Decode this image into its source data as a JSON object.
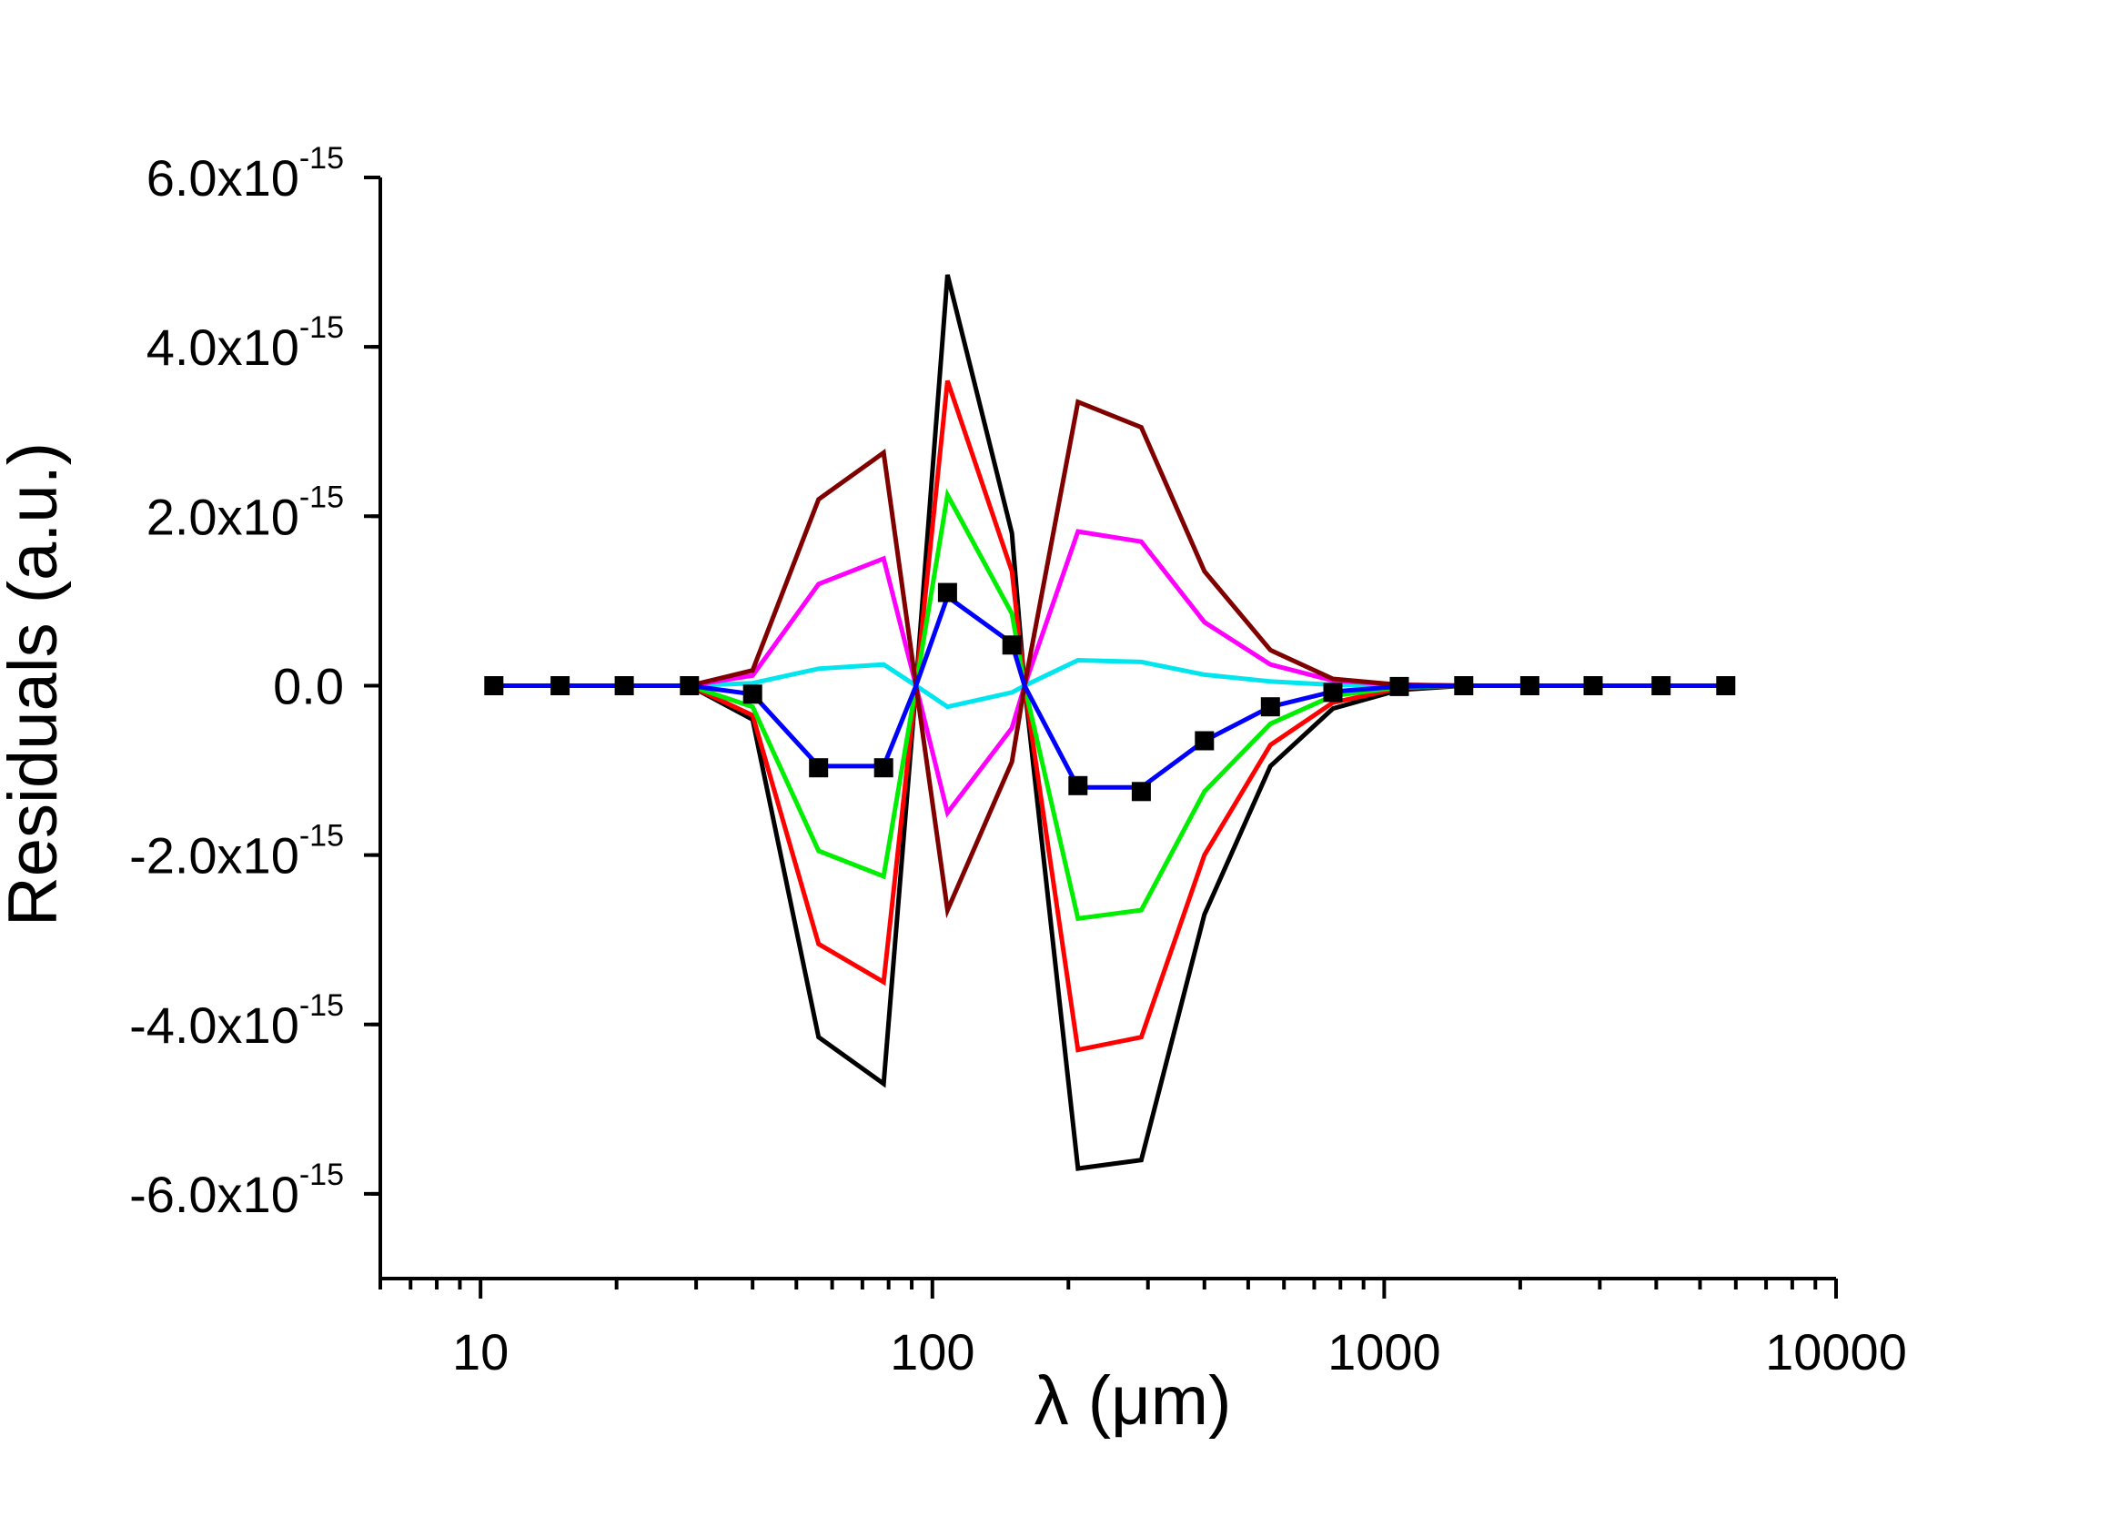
{
  "chart_data": {
    "type": "line",
    "title": "",
    "xlabel": "λ (μm)",
    "ylabel": "Residuals (a.u.)",
    "x_scale": "log",
    "xlim": [
      6,
      10000
    ],
    "ylim": [
      -7e-15,
      6e-15
    ],
    "x_ticks": [
      {
        "value": 10,
        "label": "10"
      },
      {
        "value": 100,
        "label": "100"
      },
      {
        "value": 1000,
        "label": "1000"
      },
      {
        "value": 10000,
        "label": "10000"
      }
    ],
    "y_ticks": [
      {
        "value": 6e-15,
        "mantissa": "6.0x10",
        "exponent": "-15"
      },
      {
        "value": 4e-15,
        "mantissa": "4.0x10",
        "exponent": "-15"
      },
      {
        "value": 2e-15,
        "mantissa": "2.0x10",
        "exponent": "-15"
      },
      {
        "value": 0,
        "mantissa": "0.0",
        "exponent": ""
      },
      {
        "value": -2e-15,
        "mantissa": "-2.0x10",
        "exponent": "-15"
      },
      {
        "value": -4e-15,
        "mantissa": "-4.0x10",
        "exponent": "-15"
      },
      {
        "value": -6e-15,
        "mantissa": "-6.0x10",
        "exponent": "-15"
      }
    ],
    "grid": false,
    "x": [
      10.7,
      15,
      20.8,
      29,
      40,
      56,
      78,
      92,
      108,
      150,
      160,
      210,
      290,
      400,
      560,
      770,
      1080,
      1500,
      2100,
      2900,
      4100,
      5700
    ],
    "series": [
      {
        "name": "black",
        "color": "#000000",
        "markers": false,
        "values": [
          0,
          0,
          0,
          0,
          -4e-16,
          -4.15e-15,
          -4.7e-15,
          0,
          4.85e-15,
          1.8e-15,
          0,
          -5.7e-15,
          -5.6e-15,
          -2.7e-15,
          -9.5e-16,
          -2.7e-16,
          -5e-17,
          0,
          0,
          0,
          0,
          0
        ]
      },
      {
        "name": "red",
        "color": "#ff0000",
        "markers": false,
        "values": [
          0,
          0,
          0,
          0,
          -3.5e-16,
          -3.05e-15,
          -3.5e-15,
          0,
          3.6e-15,
          1.35e-15,
          0,
          -4.3e-15,
          -4.15e-15,
          -2e-15,
          -7e-16,
          -2e-16,
          -3e-17,
          0,
          0,
          0,
          0,
          0
        ]
      },
      {
        "name": "green",
        "color": "#00ee00",
        "markers": false,
        "values": [
          0,
          0,
          0,
          0,
          -2.5e-16,
          -1.95e-15,
          -2.25e-15,
          0,
          2.25e-15,
          8.5e-16,
          0,
          -2.75e-15,
          -2.65e-15,
          -1.25e-15,
          -4.5e-16,
          -1.2e-16,
          -2e-17,
          0,
          0,
          0,
          0,
          0
        ]
      },
      {
        "name": "cyan",
        "color": "#00e5ee",
        "markers": false,
        "values": [
          0,
          0,
          0,
          0,
          3e-17,
          2e-16,
          2.5e-16,
          0,
          -2.5e-16,
          -8e-17,
          0,
          3e-16,
          2.8e-16,
          1.3e-16,
          5e-17,
          1e-17,
          0,
          0,
          0,
          0,
          0,
          0
        ]
      },
      {
        "name": "magenta",
        "color": "#ff00ff",
        "markers": false,
        "values": [
          0,
          0,
          0,
          0,
          1.2e-16,
          1.2e-15,
          1.5e-15,
          0,
          -1.5e-15,
          -5e-16,
          0,
          1.82e-15,
          1.7e-15,
          7.5e-16,
          2.5e-16,
          6e-17,
          1e-17,
          0,
          0,
          0,
          0,
          0
        ]
      },
      {
        "name": "brown",
        "color": "#800000",
        "markers": false,
        "values": [
          0,
          0,
          0,
          0,
          1.8e-16,
          2.2e-15,
          2.75e-15,
          0,
          -2.65e-15,
          -9e-16,
          0,
          3.35e-15,
          3.05e-15,
          1.35e-15,
          4.2e-16,
          8e-17,
          1e-17,
          0,
          0,
          0,
          0,
          0
        ]
      },
      {
        "name": "blue",
        "color": "#0000ff",
        "markers": false,
        "values": [
          0,
          0,
          0,
          0,
          -1e-16,
          -9.5e-16,
          -9.5e-16,
          0,
          1.05e-15,
          5e-16,
          0,
          -1.2e-15,
          -1.2e-15,
          -6.5e-16,
          -2.5e-16,
          -7e-17,
          -1e-17,
          0,
          0,
          0,
          0,
          0
        ]
      }
    ],
    "marker_series": {
      "name": "black-squares",
      "color": "#000000",
      "x": [
        10.7,
        15,
        20.8,
        29,
        40,
        56,
        78,
        108,
        150,
        210,
        290,
        400,
        560,
        770,
        1080,
        1500,
        2100,
        2900,
        4100,
        5700
      ],
      "values": [
        0,
        0,
        0,
        0,
        -1e-16,
        -9.7e-16,
        -9.7e-16,
        1.1e-15,
        4.8e-16,
        -1.18e-15,
        -1.25e-15,
        -6.5e-16,
        -2.5e-16,
        -8e-17,
        -1e-17,
        0,
        0,
        0,
        0,
        0
      ]
    }
  }
}
